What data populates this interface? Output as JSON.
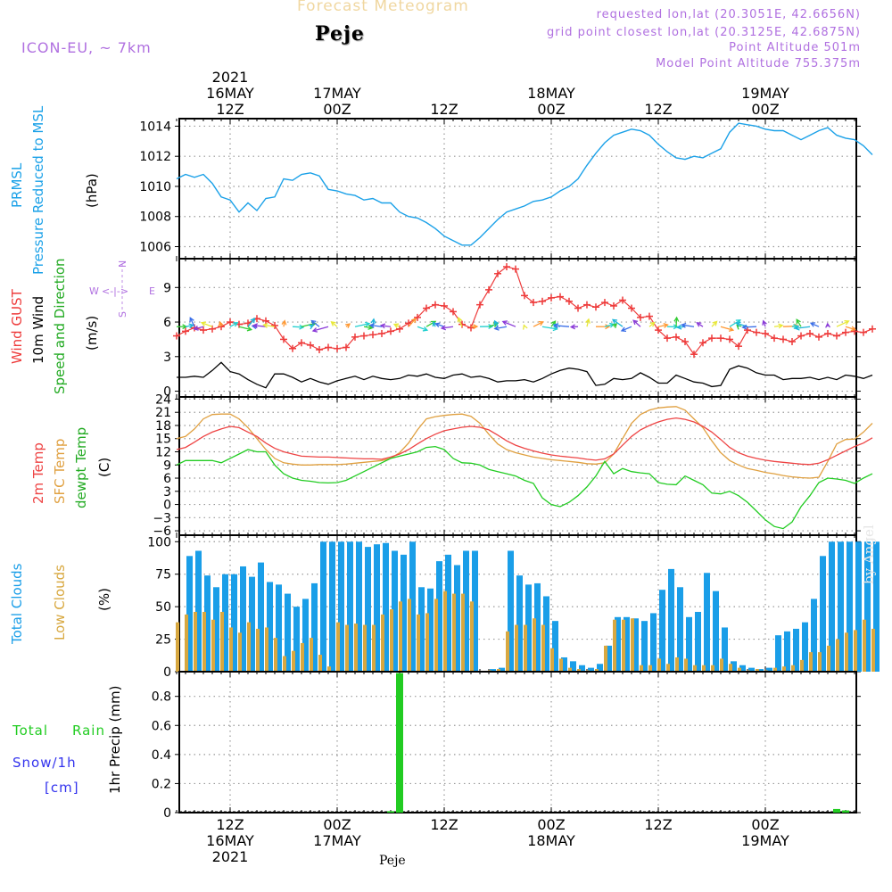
{
  "header": {
    "title_top": "Forecast Meteogram",
    "location": "Peje",
    "model": "ICON-EU, ~ 7km",
    "requested": "requested lon,lat (20.3051E, 42.6656N)",
    "grid_point": "grid point closest lon,lat (20.3125E, 42.6875N)",
    "point_alt": "Point Altitude 501m",
    "model_alt": "Model Point Altitude 755.375m",
    "watermark": "by Angel",
    "footer": "Peje"
  },
  "colors": {
    "pressure": "#1ba1e8",
    "gust": "#ee3b3b",
    "wind": "#000000",
    "temp2m": "#ee4444",
    "sfctemp": "#e0a040",
    "dewpt": "#22cc22",
    "total_clouds": "#1a9ee8",
    "low_clouds": "#d8a840",
    "rain": "#22cc22",
    "snow": "#3333ee",
    "purple": "#b070e0"
  },
  "time_axis": {
    "top_labels": [
      {
        "t": 12,
        "lines": [
          "2021",
          "16MAY",
          "12Z"
        ]
      },
      {
        "t": 24,
        "lines": [
          "17MAY",
          "00Z"
        ]
      },
      {
        "t": 36,
        "lines": [
          "12Z"
        ]
      },
      {
        "t": 48,
        "lines": [
          "18MAY",
          "00Z"
        ]
      },
      {
        "t": 60,
        "lines": [
          "12Z"
        ]
      },
      {
        "t": 72,
        "lines": [
          "19MAY",
          "00Z"
        ]
      }
    ],
    "bottom_labels": [
      {
        "t": 12,
        "lines": [
          "12Z",
          "16MAY",
          "2021"
        ]
      },
      {
        "t": 24,
        "lines": [
          "00Z",
          "17MAY"
        ]
      },
      {
        "t": 36,
        "lines": [
          "12Z"
        ]
      },
      {
        "t": 48,
        "lines": [
          "00Z",
          "18MAY"
        ]
      },
      {
        "t": 60,
        "lines": [
          "12Z"
        ]
      },
      {
        "t": 72,
        "lines": [
          "00Z",
          "19MAY"
        ]
      }
    ]
  },
  "panel_labels": {
    "pressure": [
      "PRMSL",
      "Pressure Reduced to MSL",
      "(hPa)"
    ],
    "wind": [
      "Wind GUST",
      "10m Wind",
      "Speed and Direction",
      "(m/s)"
    ],
    "compass": {
      "n": "N",
      "s": "S",
      "w": "W",
      "e": "E",
      "arrows": "<-|->"
    },
    "temp": [
      "2m Temp",
      "SFC Temp",
      "dewpt Temp",
      "(C)"
    ],
    "clouds": [
      "Total Clouds",
      "Low Clouds",
      "(%)"
    ],
    "precip_left": [
      "Total",
      "Rain",
      "Snow/1h",
      "[cm]"
    ],
    "precip_axis": "1hr Precip (mm)"
  },
  "chart_data": [
    {
      "type": "line",
      "title": "PRMSL Pressure Reduced to MSL",
      "ylabel": "(hPa)",
      "ylim": [
        1005.2,
        1014.5
      ],
      "yticks": [
        1006,
        1008,
        1010,
        1012,
        1014
      ],
      "x_start_hours": 6,
      "x_step_hours": 1,
      "values": [
        1010.5,
        1010.8,
        1010.6,
        1010.8,
        1010.2,
        1009.3,
        1009.1,
        1008.3,
        1008.9,
        1008.4,
        1009.2,
        1009.3,
        1010.5,
        1010.4,
        1010.8,
        1010.9,
        1010.7,
        1009.8,
        1009.7,
        1009.5,
        1009.4,
        1009.1,
        1009.2,
        1008.9,
        1008.9,
        1008.3,
        1008.0,
        1007.9,
        1007.6,
        1007.2,
        1006.7,
        1006.4,
        1006.1,
        1006.1,
        1006.6,
        1007.2,
        1007.8,
        1008.3,
        1008.5,
        1008.7,
        1009.0,
        1009.1,
        1009.3,
        1009.7,
        1010.0,
        1010.5,
        1011.4,
        1012.2,
        1012.9,
        1013.4,
        1013.6,
        1013.8,
        1013.7,
        1013.4,
        1012.8,
        1012.3,
        1011.9,
        1011.8,
        1012.0,
        1011.9,
        1012.2,
        1012.5,
        1013.6,
        1014.2,
        1014.1,
        1014.0,
        1013.8,
        1013.7,
        1013.7,
        1013.4,
        1013.1,
        1013.4,
        1013.7,
        1013.9,
        1013.4,
        1013.2,
        1013.1,
        1012.7,
        1012.1
      ]
    },
    {
      "type": "line",
      "title": "Wind GUST / 10m Wind Speed and Direction",
      "ylabel": "(m/s)",
      "ylim": [
        -0.5,
        11.5
      ],
      "yticks": [
        0,
        3,
        6,
        9
      ],
      "x_start_hours": 6,
      "x_step_hours": 1,
      "series": [
        {
          "name": "Wind GUST",
          "values": [
            4.8,
            5.2,
            5.5,
            5.3,
            5.4,
            5.6,
            6.0,
            5.8,
            5.9,
            6.3,
            6.1,
            5.7,
            4.5,
            3.7,
            4.2,
            4.0,
            3.6,
            3.8,
            3.7,
            3.8,
            4.7,
            4.8,
            4.9,
            5.0,
            5.2,
            5.4,
            5.9,
            6.4,
            7.2,
            7.5,
            7.4,
            6.9,
            5.8,
            5.5,
            7.5,
            8.8,
            10.2,
            10.8,
            10.6,
            8.3,
            7.7,
            7.8,
            8.1,
            8.2,
            7.8,
            7.2,
            7.5,
            7.3,
            7.7,
            7.4,
            7.9,
            7.2,
            6.4,
            6.5,
            5.3,
            4.6,
            4.7,
            4.3,
            3.2,
            4.2,
            4.6,
            4.6,
            4.5,
            3.9,
            5.3,
            5.1,
            5.0,
            4.6,
            4.5,
            4.3,
            4.8,
            5.0,
            4.7,
            5.0,
            4.8,
            5.1,
            5.2,
            5.1,
            5.4
          ]
        },
        {
          "name": "10m Wind",
          "values": [
            1.2,
            1.2,
            1.3,
            1.2,
            1.8,
            2.5,
            1.7,
            1.5,
            1.0,
            0.6,
            0.3,
            1.5,
            1.5,
            1.2,
            0.8,
            1.1,
            0.8,
            0.6,
            0.9,
            1.1,
            1.3,
            1.0,
            1.3,
            1.1,
            1.0,
            1.1,
            1.4,
            1.3,
            1.5,
            1.2,
            1.1,
            1.4,
            1.5,
            1.2,
            1.3,
            1.1,
            0.8,
            0.9,
            0.9,
            1.0,
            0.8,
            1.1,
            1.5,
            1.8,
            2.0,
            1.9,
            1.7,
            0.5,
            0.6,
            1.1,
            1.0,
            1.1,
            1.6,
            1.2,
            0.7,
            0.7,
            1.4,
            1.1,
            0.8,
            0.7,
            0.4,
            0.5,
            1.9,
            2.2,
            2.0,
            1.6,
            1.4,
            1.4,
            1.0,
            1.1,
            1.1,
            1.2,
            1.0,
            1.2,
            1.0,
            1.4,
            1.3,
            1.1,
            1.4
          ]
        }
      ]
    },
    {
      "type": "line",
      "title": "2m Temp / SFC Temp / dewpt Temp",
      "ylabel": "(C)",
      "ylim": [
        -7,
        24.5
      ],
      "yticks": [
        -6,
        -3,
        0,
        3,
        6,
        9,
        12,
        15,
        18,
        21,
        24
      ],
      "x_start_hours": 6,
      "x_step_hours": 1,
      "series": [
        {
          "name": "2m Temp",
          "values": [
            12.5,
            13.0,
            14.2,
            15.5,
            16.5,
            17.2,
            17.8,
            17.5,
            16.5,
            15.5,
            14.0,
            12.8,
            12.0,
            11.5,
            11.0,
            10.9,
            10.8,
            10.8,
            10.7,
            10.6,
            10.5,
            10.4,
            10.4,
            10.3,
            10.8,
            11.5,
            12.5,
            13.8,
            15.0,
            16.0,
            16.8,
            17.2,
            17.6,
            17.8,
            17.6,
            17.0,
            15.8,
            14.5,
            13.5,
            12.8,
            12.2,
            11.7,
            11.3,
            11.0,
            10.8,
            10.6,
            10.3,
            10.1,
            10.4,
            11.5,
            13.5,
            15.5,
            17.0,
            18.0,
            18.8,
            19.4,
            19.7,
            19.4,
            18.8,
            17.8,
            16.5,
            14.8,
            13.0,
            11.8,
            11.0,
            10.5,
            10.1,
            9.8,
            9.6,
            9.4,
            9.2,
            9.1,
            9.4,
            10.2,
            11.2,
            12.2,
            13.2,
            14.0,
            15.2
          ]
        },
        {
          "name": "SFC Temp",
          "values": [
            15.0,
            15.5,
            17.2,
            19.5,
            20.5,
            20.6,
            20.6,
            19.5,
            17.5,
            15.0,
            12.5,
            10.5,
            9.5,
            9.2,
            9.0,
            9.0,
            9.1,
            9.1,
            9.1,
            9.2,
            9.4,
            9.6,
            9.8,
            10.0,
            10.5,
            11.8,
            14.0,
            17.0,
            19.5,
            20.0,
            20.3,
            20.5,
            20.6,
            20.1,
            18.5,
            16.0,
            13.8,
            12.5,
            11.8,
            11.3,
            10.8,
            10.5,
            10.2,
            10.0,
            9.8,
            9.6,
            9.3,
            9.2,
            9.5,
            11.5,
            15.0,
            18.5,
            20.5,
            21.5,
            22.0,
            22.2,
            22.3,
            21.5,
            19.5,
            17.5,
            14.5,
            11.8,
            10.0,
            9.0,
            8.2,
            7.8,
            7.3,
            7.0,
            6.6,
            6.3,
            6.1,
            6.0,
            6.2,
            9.8,
            13.8,
            14.8,
            14.9,
            16.5,
            18.5
          ]
        },
        {
          "name": "dewpt Temp",
          "values": [
            9.0,
            10.0,
            10.0,
            10.0,
            10.0,
            9.5,
            10.5,
            11.5,
            12.5,
            12.0,
            12.0,
            9.0,
            7.0,
            6.0,
            5.5,
            5.3,
            5.0,
            4.9,
            5.0,
            5.5,
            6.5,
            7.5,
            8.5,
            9.5,
            10.5,
            11.0,
            11.5,
            12.0,
            13.0,
            13.2,
            12.5,
            10.5,
            9.5,
            9.4,
            9.0,
            8.0,
            7.5,
            7.0,
            6.5,
            5.5,
            4.8,
            1.5,
            0.0,
            -0.5,
            0.5,
            2.0,
            4.0,
            6.5,
            9.8,
            7.0,
            8.2,
            7.5,
            7.2,
            7.0,
            5.0,
            4.6,
            4.5,
            6.5,
            5.5,
            4.5,
            2.6,
            2.4,
            3.0,
            2.0,
            0.5,
            -1.5,
            -3.5,
            -5.0,
            -5.5,
            -4.0,
            -0.5,
            2.0,
            5.0,
            6.0,
            5.8,
            5.5,
            4.8,
            6.0,
            7.0
          ]
        }
      ]
    },
    {
      "type": "bar",
      "title": "Total Clouds / Low Clouds",
      "ylabel": "(%)",
      "ylim": [
        0,
        105
      ],
      "yticks": [
        0,
        25,
        50,
        75,
        100
      ],
      "x_start_hours": 6,
      "x_step_hours": 1,
      "series": [
        {
          "name": "Total Clouds",
          "values": [
            0,
            89,
            93,
            74,
            65,
            75,
            75,
            81,
            73,
            84,
            69,
            67,
            60,
            50,
            56,
            68,
            100,
            100,
            100,
            100,
            100,
            96,
            98,
            99,
            93,
            90,
            100,
            65,
            64,
            85,
            90,
            82,
            93,
            93,
            0,
            2,
            3,
            93,
            74,
            67,
            68,
            58,
            39,
            11,
            8,
            5,
            3,
            6,
            20,
            42,
            42,
            41,
            39,
            45,
            63,
            79,
            65,
            42,
            46,
            76,
            62,
            34,
            8,
            5,
            3,
            2,
            3,
            28,
            31,
            33,
            38,
            56,
            89,
            100,
            100,
            100,
            100,
            100,
            100
          ]
        },
        {
          "name": "Low Clouds",
          "values": [
            38,
            44,
            46,
            46,
            40,
            46,
            34,
            30,
            38,
            33,
            34,
            26,
            12,
            16,
            22,
            26,
            13,
            4,
            38,
            36,
            37,
            36,
            36,
            44,
            48,
            54,
            56,
            44,
            45,
            56,
            62,
            60,
            60,
            54,
            0,
            1,
            2,
            31,
            36,
            36,
            41,
            36,
            18,
            10,
            3,
            2,
            1,
            2,
            20,
            40,
            40,
            41,
            5,
            5,
            10,
            6,
            11,
            10,
            5,
            5,
            5,
            10,
            6,
            3,
            1,
            2,
            1,
            3,
            4,
            5,
            9,
            15,
            15,
            20,
            25,
            30,
            32,
            40,
            33
          ]
        }
      ]
    },
    {
      "type": "bar",
      "title": "1hr Precip",
      "ylabel": "1hr Precip (mm)",
      "ylim": [
        0,
        0.97
      ],
      "yticks": [
        0,
        0.2,
        0.4,
        0.6,
        0.8
      ],
      "points": [
        {
          "t": 30,
          "value": 0.01
        },
        {
          "t": 31,
          "value": 0.96
        },
        {
          "t": 80,
          "value": 0.025
        },
        {
          "t": 81,
          "value": 0.015
        }
      ]
    }
  ]
}
